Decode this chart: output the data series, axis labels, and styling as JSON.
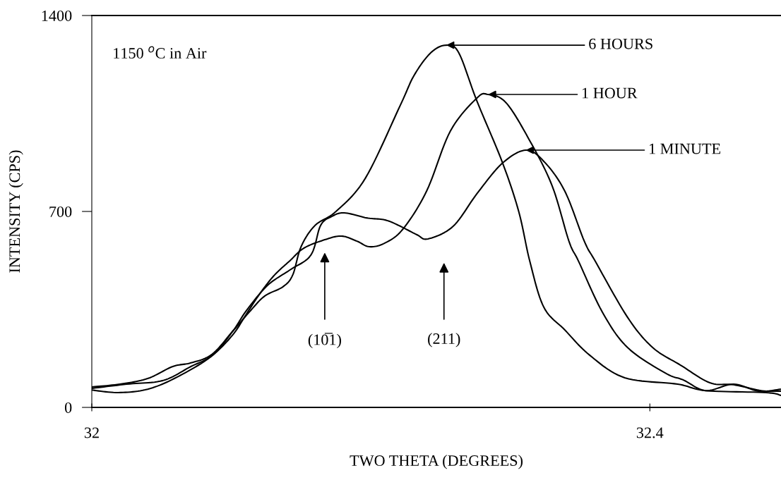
{
  "chart_data": {
    "type": "line",
    "xlabel": "TWO THETA (DEGREES)",
    "ylabel": "INTENSITY (CPS)",
    "xlim": [
      32,
      32.494
    ],
    "ylim": [
      0,
      1400
    ],
    "xticks": [
      32,
      32.4
    ],
    "yticks": [
      0,
      700,
      1400
    ],
    "grid": false,
    "marker": "none",
    "line_style": "solid",
    "series": [
      {
        "color": "#000000",
        "x": [
          32.0,
          32.02,
          32.04,
          32.058,
          32.071,
          32.086,
          32.101,
          32.114,
          32.124,
          32.137,
          32.144,
          32.15,
          32.16,
          32.175,
          32.196,
          32.221,
          32.231,
          32.243,
          32.254,
          32.263,
          32.276,
          32.294,
          32.306,
          32.314,
          32.324,
          32.339,
          32.357,
          32.382,
          32.42,
          32.44,
          32.483,
          32.494
        ],
        "values": [
          73,
          83,
          103,
          146,
          159,
          189,
          272,
          347,
          398,
          431,
          473,
          574,
          650,
          700,
          818,
          1078,
          1186,
          1267,
          1294,
          1267,
          1095,
          879,
          700,
          521,
          358,
          277,
          186,
          106,
          83,
          60,
          53,
          43
        ]
      },
      {
        "color": "#000000",
        "x": [
          32.0,
          32.025,
          32.051,
          32.071,
          32.086,
          32.101,
          32.111,
          32.121,
          32.131,
          32.142,
          32.152,
          32.167,
          32.179,
          32.19,
          32.199,
          32.21,
          32.223,
          32.24,
          32.257,
          32.276,
          32.284,
          32.297,
          32.314,
          32.33,
          32.342,
          32.349,
          32.366,
          32.384,
          32.411,
          32.424,
          32.44,
          32.46,
          32.478,
          32.494
        ],
        "values": [
          68,
          83,
          96,
          146,
          184,
          259,
          335,
          410,
          473,
          524,
          569,
          599,
          612,
          594,
          574,
          587,
          637,
          773,
          987,
          1105,
          1118,
          1088,
          952,
          791,
          594,
          521,
          340,
          214,
          123,
          98,
          60,
          83,
          58,
          65
        ]
      },
      {
        "color": "#000000",
        "x": [
          32.0,
          32.019,
          32.04,
          32.061,
          32.086,
          32.101,
          32.111,
          32.126,
          32.142,
          32.157,
          32.164,
          32.172,
          32.181,
          32.197,
          32.21,
          32.22,
          32.233,
          32.241,
          32.259,
          32.276,
          32.294,
          32.311,
          32.324,
          32.339,
          32.353,
          32.361,
          32.384,
          32.402,
          32.422,
          32.443,
          32.46,
          32.48,
          32.494
        ],
        "values": [
          62,
          53,
          65,
          108,
          184,
          272,
          347,
          436,
          491,
          544,
          650,
          682,
          695,
          677,
          670,
          650,
          617,
          602,
          647,
          763,
          871,
          919,
          879,
          773,
          594,
          521,
          322,
          214,
          151,
          88,
          81,
          60,
          58
        ]
      }
    ],
    "annotations": [
      "1150 $^{o}$C in Air",
      "(10̅1)",
      "(211)",
      {
        "text": "6 HOURS",
        "x": 32.254,
        "y": 1294
      },
      {
        "text": "1 HOUR",
        "x": 32.284,
        "y": 1118
      },
      {
        "text": "1 MINUTE",
        "x": 32.311,
        "y": 919
      }
    ]
  }
}
